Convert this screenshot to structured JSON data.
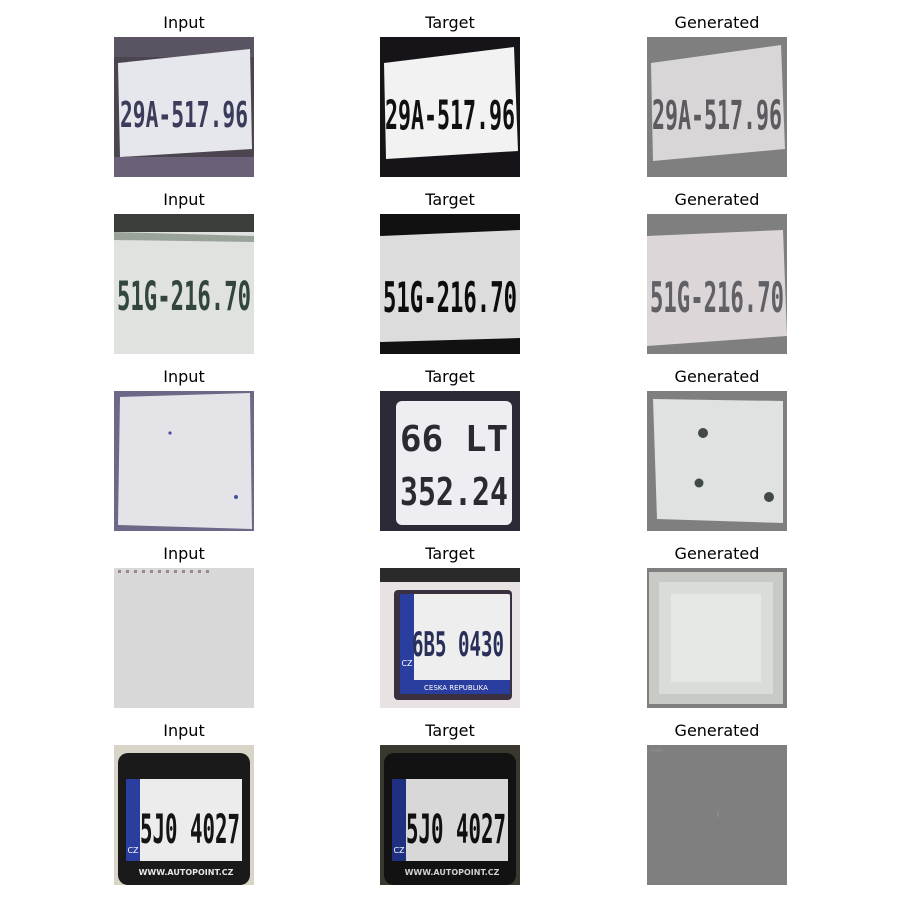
{
  "columns": [
    "Input",
    "Target",
    "Generated"
  ],
  "rows": [
    {
      "input": {
        "title": "Input",
        "plate_text": "29A-517.96"
      },
      "target": {
        "title": "Target",
        "plate_text": "29A-517.96"
      },
      "generated": {
        "title": "Generated",
        "plate_text": "29A-517.96"
      }
    },
    {
      "input": {
        "title": "Input",
        "plate_text": "51G-216.70"
      },
      "target": {
        "title": "Target",
        "plate_text": "51G-216.70"
      },
      "generated": {
        "title": "Generated",
        "plate_text": "51G-216.70"
      }
    },
    {
      "input": {
        "title": "Input",
        "plate_text": ""
      },
      "target": {
        "title": "Target",
        "plate_line1": "66 LT",
        "plate_line2": "352.24"
      },
      "generated": {
        "title": "Generated",
        "plate_text": ""
      }
    },
    {
      "input": {
        "title": "Input",
        "plate_text": ""
      },
      "target": {
        "title": "Target",
        "plate_text": "6B5 0430",
        "country": "CZ",
        "footer": "CESKA REPUBLIKA"
      },
      "generated": {
        "title": "Generated",
        "plate_text": ""
      }
    },
    {
      "input": {
        "title": "Input",
        "plate_text": "5J0 4027",
        "country": "CZ",
        "footer": "WWW.AUTOPOINT.CZ"
      },
      "target": {
        "title": "Target",
        "plate_text": "5J0 4027",
        "country": "CZ",
        "footer": "WWW.AUTOPOINT.CZ"
      },
      "generated": {
        "title": "Generated",
        "plate_text": ""
      }
    }
  ],
  "colors": {
    "generated_bg": "#7f7f7f",
    "plate_white": "#e8eaec",
    "ink": "#2b2f3e",
    "cz_blue": "#2a3ea0"
  }
}
